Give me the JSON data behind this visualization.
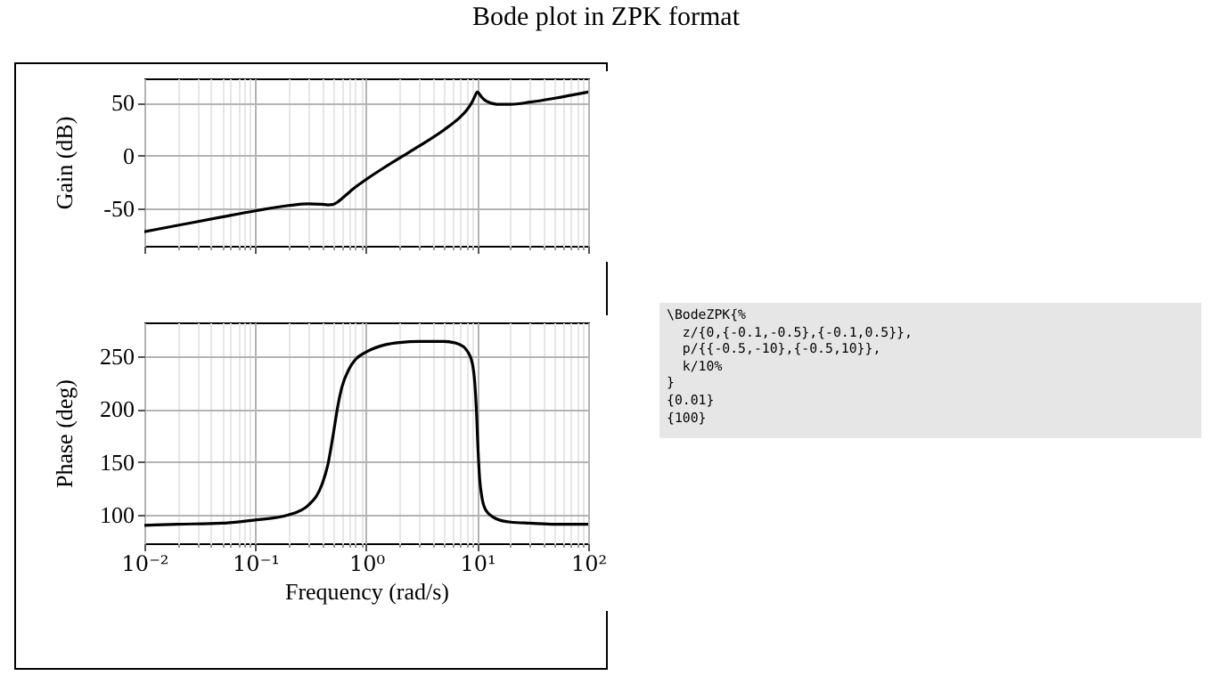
{
  "chart_data": [
    {
      "type": "line",
      "title": "Bode plot in ZPK format",
      "ylabel": "Gain (dB)",
      "log": "x",
      "grid": true,
      "tick_labels": "y",
      "xlim": [
        0.01,
        100
      ],
      "ylim": [
        -85,
        73
      ],
      "yticks": [
        -50,
        0,
        50
      ],
      "xticks": [
        0.01,
        0.02,
        0.03,
        0.04,
        0.05,
        0.06,
        0.07,
        0.08,
        0.09,
        0.1,
        0.2,
        0.3,
        0.4,
        0.5,
        0.6,
        0.7,
        0.8,
        0.9,
        1,
        2,
        3,
        4,
        5,
        6,
        7,
        8,
        9,
        10,
        20,
        30,
        40,
        50,
        60,
        70,
        80,
        90,
        100
      ],
      "x": [
        0.01,
        0.02,
        0.05,
        0.1,
        0.2,
        0.3,
        0.4,
        0.45,
        0.5,
        0.52,
        0.55,
        0.6,
        0.7,
        0.8,
        1,
        1.5,
        2,
        3,
        5,
        7,
        8,
        9,
        9.5,
        9.8,
        9.9,
        10,
        10.1,
        10.2,
        10.5,
        11,
        12,
        15,
        20,
        30,
        50,
        100
      ],
      "series": [
        {
          "color": "#000000",
          "values": [
            -71.7,
            -65.7,
            -57.8,
            -52.0,
            -47.0,
            -45.4,
            -45.8,
            -46.4,
            -46.0,
            -45.3,
            -43.8,
            -40.6,
            -34.5,
            -29.6,
            -22.3,
            -10.2,
            -2.1,
            9.2,
            24.3,
            36.4,
            42.8,
            50.7,
            55.9,
            58.9,
            59.6,
            60.0,
            60.0,
            59.8,
            58.0,
            55.1,
            51.6,
            48.6,
            48.5,
            50.6,
            54.3,
            60.1
          ]
        }
      ]
    },
    {
      "type": "line",
      "xlabel": "Frequency (rad/s)",
      "ylabel": "Phase (deg)",
      "log": "x",
      "grid": true,
      "xlim": [
        0.01,
        100
      ],
      "ylim": [
        73,
        282
      ],
      "yticks": [
        100,
        150,
        200,
        250
      ],
      "xticks": [
        {
          "value": 0.01,
          "label": "10⁻²"
        },
        {
          "value": 0.02,
          "label": null
        },
        {
          "value": 0.03,
          "label": null
        },
        {
          "value": 0.04,
          "label": null
        },
        {
          "value": 0.05,
          "label": null
        },
        {
          "value": 0.06,
          "label": null
        },
        {
          "value": 0.07,
          "label": null
        },
        {
          "value": 0.08,
          "label": null
        },
        {
          "value": 0.09,
          "label": null
        },
        {
          "value": 0.1,
          "label": "10⁻¹"
        },
        {
          "value": 0.2,
          "label": null
        },
        {
          "value": 0.3,
          "label": null
        },
        {
          "value": 0.4,
          "label": null
        },
        {
          "value": 0.5,
          "label": null
        },
        {
          "value": 0.6,
          "label": null
        },
        {
          "value": 0.7,
          "label": null
        },
        {
          "value": 0.8,
          "label": null
        },
        {
          "value": 0.9,
          "label": null
        },
        {
          "value": 1,
          "label": "10⁰"
        },
        {
          "value": 2,
          "label": null
        },
        {
          "value": 3,
          "label": null
        },
        {
          "value": 4,
          "label": null
        },
        {
          "value": 5,
          "label": null
        },
        {
          "value": 6,
          "label": null
        },
        {
          "value": 7,
          "label": null
        },
        {
          "value": 8,
          "label": null
        },
        {
          "value": 9,
          "label": null
        },
        {
          "value": 10,
          "label": "10¹"
        },
        {
          "value": 20,
          "label": null
        },
        {
          "value": 30,
          "label": null
        },
        {
          "value": 40,
          "label": null
        },
        {
          "value": 50,
          "label": null
        },
        {
          "value": 60,
          "label": null
        },
        {
          "value": 70,
          "label": null
        },
        {
          "value": 80,
          "label": null
        },
        {
          "value": 90,
          "label": null
        },
        {
          "value": 100,
          "label": "10²"
        }
      ],
      "x": [
        0.01,
        0.02,
        0.05,
        0.1,
        0.2,
        0.3,
        0.4,
        0.45,
        0.5,
        0.52,
        0.55,
        0.6,
        0.7,
        0.8,
        1,
        1.5,
        2,
        3,
        5,
        7,
        8,
        9,
        9.5,
        9.8,
        9.9,
        10,
        10.1,
        10.2,
        10.5,
        11,
        12,
        15,
        20,
        30,
        50,
        100
      ],
      "series": [
        {
          "color": "#000000",
          "values": [
            90,
            91,
            92,
            95,
            100,
            109,
            129,
            147,
            174,
            185,
            201,
            220,
            238,
            247,
            254,
            261,
            263,
            264,
            264,
            261,
            256,
            244,
            225,
            202,
            192,
            180,
            169,
            159,
            135,
            117,
            104,
            96,
            93,
            92,
            91,
            91
          ]
        }
      ]
    },
    {
      "type": "other",
      "annotations": [
        "\\BodeZPK{%",
        "  z/{0,{-0.1,-0.5},{-0.1,0.5}},",
        "  p/{{-0.5,-10},{-0.5,10}},",
        "  k/10%",
        "}",
        "{0.01}",
        "{100}"
      ]
    }
  ]
}
